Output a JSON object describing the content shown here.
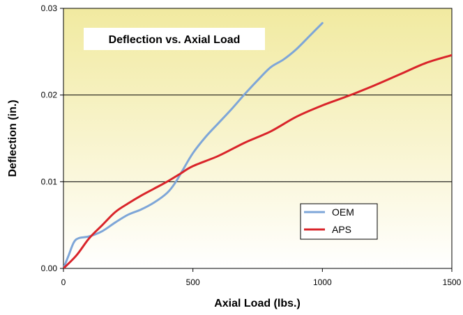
{
  "chart_data": {
    "type": "line",
    "title": "Deflection vs. Axial Load",
    "xlabel": "Axial Load (lbs.)",
    "ylabel": "Deflection (in.)",
    "xlim": [
      0,
      1500
    ],
    "ylim": [
      0,
      0.03
    ],
    "x_ticks": [
      "0",
      "500",
      "1000",
      "1500"
    ],
    "y_ticks": [
      "0.00",
      "0.01",
      "0.02",
      "0.03"
    ],
    "grid": "horizontal",
    "legend_position": "bottom-right",
    "background": "yellow-gradient",
    "series": [
      {
        "name": "OEM",
        "color": "#7ea6d8",
        "points": [
          [
            0,
            0.0
          ],
          [
            20,
            0.0015
          ],
          [
            40,
            0.003
          ],
          [
            60,
            0.0035
          ],
          [
            100,
            0.0037
          ],
          [
            150,
            0.0043
          ],
          [
            200,
            0.0053
          ],
          [
            250,
            0.0062
          ],
          [
            300,
            0.0068
          ],
          [
            350,
            0.0076
          ],
          [
            400,
            0.0087
          ],
          [
            430,
            0.0098
          ],
          [
            460,
            0.0113
          ],
          [
            500,
            0.0133
          ],
          [
            550,
            0.0152
          ],
          [
            600,
            0.0168
          ],
          [
            650,
            0.0184
          ],
          [
            700,
            0.0201
          ],
          [
            750,
            0.0217
          ],
          [
            800,
            0.0232
          ],
          [
            850,
            0.0241
          ],
          [
            900,
            0.0253
          ],
          [
            950,
            0.0268
          ],
          [
            1000,
            0.0283
          ]
        ]
      },
      {
        "name": "APS",
        "color": "#d9242a",
        "points": [
          [
            0,
            0.0
          ],
          [
            50,
            0.0015
          ],
          [
            100,
            0.0035
          ],
          [
            150,
            0.005
          ],
          [
            200,
            0.0065
          ],
          [
            250,
            0.0075
          ],
          [
            300,
            0.0084
          ],
          [
            350,
            0.0092
          ],
          [
            400,
            0.01
          ],
          [
            450,
            0.0109
          ],
          [
            500,
            0.0118
          ],
          [
            600,
            0.013
          ],
          [
            700,
            0.0145
          ],
          [
            800,
            0.0158
          ],
          [
            900,
            0.0175
          ],
          [
            1000,
            0.0188
          ],
          [
            1100,
            0.0199
          ],
          [
            1200,
            0.0211
          ],
          [
            1300,
            0.0224
          ],
          [
            1400,
            0.0237
          ],
          [
            1500,
            0.0246
          ]
        ]
      }
    ]
  }
}
